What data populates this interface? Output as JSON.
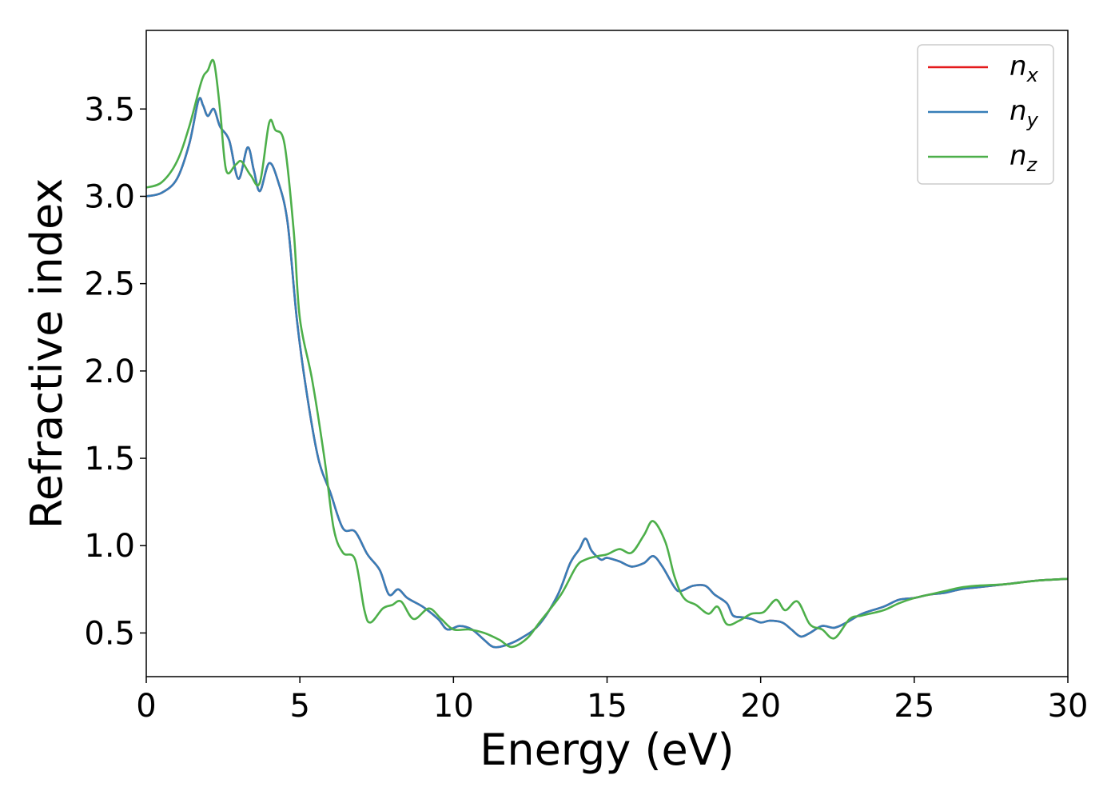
{
  "chart_data": {
    "type": "line",
    "title": "",
    "xlabel": "Energy (eV)",
    "ylabel": "Refractive index",
    "xlim": [
      0,
      30
    ],
    "ylim": [
      0.25,
      3.95
    ],
    "xticks": [
      0,
      5,
      10,
      15,
      20,
      25,
      30
    ],
    "xtick_labels": [
      "0",
      "5",
      "10",
      "15",
      "20",
      "25",
      "30"
    ],
    "yticks": [
      0.5,
      1.0,
      1.5,
      2.0,
      2.5,
      3.0,
      3.5
    ],
    "ytick_labels": [
      "0.5",
      "1.0",
      "1.5",
      "2.0",
      "2.5",
      "3.0",
      "3.5"
    ],
    "grid": false,
    "legend_position": "top-right",
    "series": [
      {
        "name": "n_x",
        "legend_base": "n",
        "legend_sub": "x",
        "color": "#e41a1c",
        "points": [
          [
            0,
            3.0
          ],
          [
            0.5,
            3.02
          ],
          [
            1.0,
            3.1
          ],
          [
            1.4,
            3.3
          ],
          [
            1.7,
            3.55
          ],
          [
            1.85,
            3.52
          ],
          [
            2.0,
            3.46
          ],
          [
            2.2,
            3.5
          ],
          [
            2.4,
            3.4
          ],
          [
            2.7,
            3.32
          ],
          [
            3.0,
            3.1
          ],
          [
            3.3,
            3.28
          ],
          [
            3.5,
            3.15
          ],
          [
            3.7,
            3.03
          ],
          [
            4.0,
            3.19
          ],
          [
            4.3,
            3.08
          ],
          [
            4.6,
            2.85
          ],
          [
            4.9,
            2.3
          ],
          [
            5.2,
            1.9
          ],
          [
            5.6,
            1.5
          ],
          [
            6.0,
            1.3
          ],
          [
            6.4,
            1.1
          ],
          [
            6.8,
            1.08
          ],
          [
            7.2,
            0.95
          ],
          [
            7.6,
            0.86
          ],
          [
            7.9,
            0.72
          ],
          [
            8.2,
            0.75
          ],
          [
            8.5,
            0.7
          ],
          [
            9.0,
            0.65
          ],
          [
            9.5,
            0.58
          ],
          [
            9.8,
            0.52
          ],
          [
            10.2,
            0.54
          ],
          [
            10.6,
            0.52
          ],
          [
            11.0,
            0.46
          ],
          [
            11.3,
            0.42
          ],
          [
            11.7,
            0.43
          ],
          [
            12.2,
            0.47
          ],
          [
            12.8,
            0.55
          ],
          [
            13.4,
            0.72
          ],
          [
            13.8,
            0.9
          ],
          [
            14.1,
            0.98
          ],
          [
            14.3,
            1.04
          ],
          [
            14.5,
            0.97
          ],
          [
            14.8,
            0.92
          ],
          [
            15.0,
            0.93
          ],
          [
            15.4,
            0.91
          ],
          [
            15.8,
            0.88
          ],
          [
            16.2,
            0.9
          ],
          [
            16.5,
            0.94
          ],
          [
            16.8,
            0.88
          ],
          [
            17.2,
            0.76
          ],
          [
            17.4,
            0.74
          ],
          [
            17.8,
            0.77
          ],
          [
            18.2,
            0.77
          ],
          [
            18.5,
            0.72
          ],
          [
            18.9,
            0.67
          ],
          [
            19.1,
            0.6
          ],
          [
            19.4,
            0.59
          ],
          [
            19.7,
            0.58
          ],
          [
            20.0,
            0.56
          ],
          [
            20.3,
            0.57
          ],
          [
            20.7,
            0.56
          ],
          [
            21.0,
            0.52
          ],
          [
            21.3,
            0.48
          ],
          [
            21.6,
            0.5
          ],
          [
            22.0,
            0.54
          ],
          [
            22.4,
            0.53
          ],
          [
            22.8,
            0.56
          ],
          [
            23.3,
            0.61
          ],
          [
            24.0,
            0.65
          ],
          [
            24.5,
            0.69
          ],
          [
            25.0,
            0.7
          ],
          [
            25.5,
            0.72
          ],
          [
            26.0,
            0.73
          ],
          [
            26.5,
            0.75
          ],
          [
            27.0,
            0.76
          ],
          [
            28.0,
            0.78
          ],
          [
            29.0,
            0.8
          ],
          [
            30.0,
            0.81
          ]
        ]
      },
      {
        "name": "n_y",
        "legend_base": "n",
        "legend_sub": "y",
        "color": "#377eb8",
        "points": [
          [
            0,
            3.0
          ],
          [
            0.5,
            3.02
          ],
          [
            1.0,
            3.1
          ],
          [
            1.4,
            3.3
          ],
          [
            1.7,
            3.55
          ],
          [
            1.85,
            3.52
          ],
          [
            2.0,
            3.46
          ],
          [
            2.2,
            3.5
          ],
          [
            2.4,
            3.4
          ],
          [
            2.7,
            3.32
          ],
          [
            3.0,
            3.1
          ],
          [
            3.3,
            3.28
          ],
          [
            3.5,
            3.15
          ],
          [
            3.7,
            3.03
          ],
          [
            4.0,
            3.19
          ],
          [
            4.3,
            3.08
          ],
          [
            4.6,
            2.85
          ],
          [
            4.9,
            2.3
          ],
          [
            5.2,
            1.9
          ],
          [
            5.6,
            1.5
          ],
          [
            6.0,
            1.3
          ],
          [
            6.4,
            1.1
          ],
          [
            6.8,
            1.08
          ],
          [
            7.2,
            0.95
          ],
          [
            7.6,
            0.86
          ],
          [
            7.9,
            0.72
          ],
          [
            8.2,
            0.75
          ],
          [
            8.5,
            0.7
          ],
          [
            9.0,
            0.65
          ],
          [
            9.5,
            0.58
          ],
          [
            9.8,
            0.52
          ],
          [
            10.2,
            0.54
          ],
          [
            10.6,
            0.52
          ],
          [
            11.0,
            0.46
          ],
          [
            11.3,
            0.42
          ],
          [
            11.7,
            0.43
          ],
          [
            12.2,
            0.47
          ],
          [
            12.8,
            0.55
          ],
          [
            13.4,
            0.72
          ],
          [
            13.8,
            0.9
          ],
          [
            14.1,
            0.98
          ],
          [
            14.3,
            1.04
          ],
          [
            14.5,
            0.97
          ],
          [
            14.8,
            0.92
          ],
          [
            15.0,
            0.93
          ],
          [
            15.4,
            0.91
          ],
          [
            15.8,
            0.88
          ],
          [
            16.2,
            0.9
          ],
          [
            16.5,
            0.94
          ],
          [
            16.8,
            0.88
          ],
          [
            17.2,
            0.76
          ],
          [
            17.4,
            0.74
          ],
          [
            17.8,
            0.77
          ],
          [
            18.2,
            0.77
          ],
          [
            18.5,
            0.72
          ],
          [
            18.9,
            0.67
          ],
          [
            19.1,
            0.6
          ],
          [
            19.4,
            0.59
          ],
          [
            19.7,
            0.58
          ],
          [
            20.0,
            0.56
          ],
          [
            20.3,
            0.57
          ],
          [
            20.7,
            0.56
          ],
          [
            21.0,
            0.52
          ],
          [
            21.3,
            0.48
          ],
          [
            21.6,
            0.5
          ],
          [
            22.0,
            0.54
          ],
          [
            22.4,
            0.53
          ],
          [
            22.8,
            0.56
          ],
          [
            23.3,
            0.61
          ],
          [
            24.0,
            0.65
          ],
          [
            24.5,
            0.69
          ],
          [
            25.0,
            0.7
          ],
          [
            25.5,
            0.72
          ],
          [
            26.0,
            0.73
          ],
          [
            26.5,
            0.75
          ],
          [
            27.0,
            0.76
          ],
          [
            28.0,
            0.78
          ],
          [
            29.0,
            0.8
          ],
          [
            30.0,
            0.81
          ]
        ]
      },
      {
        "name": "n_z",
        "legend_base": "n",
        "legend_sub": "z",
        "color": "#4daf4a",
        "points": [
          [
            0,
            3.05
          ],
          [
            0.5,
            3.08
          ],
          [
            1.0,
            3.2
          ],
          [
            1.4,
            3.4
          ],
          [
            1.8,
            3.66
          ],
          [
            2.0,
            3.72
          ],
          [
            2.2,
            3.77
          ],
          [
            2.4,
            3.5
          ],
          [
            2.6,
            3.15
          ],
          [
            2.9,
            3.18
          ],
          [
            3.1,
            3.2
          ],
          [
            3.4,
            3.12
          ],
          [
            3.7,
            3.08
          ],
          [
            4.0,
            3.42
          ],
          [
            4.2,
            3.38
          ],
          [
            4.5,
            3.3
          ],
          [
            4.8,
            2.8
          ],
          [
            5.0,
            2.3
          ],
          [
            5.4,
            1.95
          ],
          [
            5.8,
            1.5
          ],
          [
            6.1,
            1.1
          ],
          [
            6.4,
            0.96
          ],
          [
            6.8,
            0.92
          ],
          [
            7.1,
            0.63
          ],
          [
            7.3,
            0.56
          ],
          [
            7.7,
            0.64
          ],
          [
            8.0,
            0.66
          ],
          [
            8.3,
            0.68
          ],
          [
            8.7,
            0.58
          ],
          [
            9.2,
            0.64
          ],
          [
            9.6,
            0.58
          ],
          [
            10.0,
            0.52
          ],
          [
            10.5,
            0.52
          ],
          [
            11.0,
            0.5
          ],
          [
            11.5,
            0.46
          ],
          [
            11.9,
            0.42
          ],
          [
            12.4,
            0.47
          ],
          [
            12.8,
            0.56
          ],
          [
            13.5,
            0.72
          ],
          [
            14.0,
            0.88
          ],
          [
            14.3,
            0.92
          ],
          [
            14.7,
            0.94
          ],
          [
            15.0,
            0.95
          ],
          [
            15.4,
            0.98
          ],
          [
            15.8,
            0.96
          ],
          [
            16.2,
            1.06
          ],
          [
            16.5,
            1.14
          ],
          [
            16.9,
            1.02
          ],
          [
            17.2,
            0.82
          ],
          [
            17.5,
            0.7
          ],
          [
            17.9,
            0.66
          ],
          [
            18.3,
            0.61
          ],
          [
            18.6,
            0.65
          ],
          [
            18.9,
            0.55
          ],
          [
            19.3,
            0.57
          ],
          [
            19.7,
            0.61
          ],
          [
            20.1,
            0.62
          ],
          [
            20.5,
            0.69
          ],
          [
            20.8,
            0.63
          ],
          [
            21.2,
            0.68
          ],
          [
            21.6,
            0.55
          ],
          [
            22.0,
            0.52
          ],
          [
            22.4,
            0.47
          ],
          [
            22.9,
            0.58
          ],
          [
            23.3,
            0.6
          ],
          [
            24.0,
            0.63
          ],
          [
            24.5,
            0.67
          ],
          [
            25.0,
            0.7
          ],
          [
            25.5,
            0.72
          ],
          [
            26.0,
            0.74
          ],
          [
            26.5,
            0.76
          ],
          [
            27.0,
            0.77
          ],
          [
            28.0,
            0.78
          ],
          [
            29.0,
            0.8
          ],
          [
            30.0,
            0.81
          ]
        ]
      }
    ]
  }
}
